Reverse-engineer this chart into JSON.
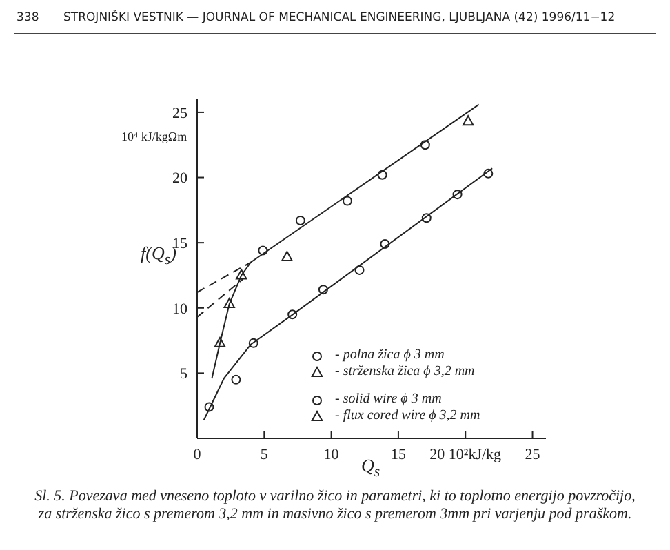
{
  "chart_data": {
    "type": "scatter",
    "xlabel": "Q$_{s}$",
    "ylabel": "f(Q$_{s}$)",
    "xlim": [
      0,
      26
    ],
    "ylim": [
      0,
      26
    ],
    "xticks": [
      0,
      5,
      10,
      15,
      {
        "value": 20,
        "label": "20 10²kJ/kg"
      },
      25
    ],
    "yticks": [
      5,
      10,
      15,
      20,
      25
    ],
    "grid": false,
    "legend": "bottom right",
    "series": [
      {
        "name": "- polna žica ϕ 3 mm",
        "marker": "circle",
        "color": "#222222",
        "x": [
          0.9,
          2.9,
          4.2,
          7.1,
          9.4,
          12.1,
          14.0,
          17.1,
          19.4,
          21.7,
          4.9,
          7.7,
          11.2,
          13.8,
          17.0
        ],
        "values": [
          2.4,
          4.5,
          7.3,
          9.5,
          11.4,
          12.9,
          14.9,
          16.9,
          18.7,
          20.3,
          14.4,
          16.7,
          18.2,
          20.2,
          22.5
        ]
      },
      {
        "name": "- strženska žica ϕ 3,2 mm",
        "marker": "triangle",
        "color": "#222222",
        "x": [
          1.7,
          2.4,
          3.3,
          6.7,
          20.2
        ],
        "values": [
          7.3,
          10.3,
          12.5,
          13.9,
          24.3
        ]
      },
      {
        "type": "line",
        "line_style": "solid",
        "color": "#222222",
        "x": [
          0.5,
          2,
          4,
          7,
          22
        ],
        "values": [
          1.4,
          4.6,
          7.2,
          9.4,
          20.7
        ]
      },
      {
        "type": "line",
        "line_style": "solid",
        "color": "#222222",
        "x": [
          1.1,
          1.7,
          2.4,
          3.3,
          4,
          21
        ],
        "values": [
          4.6,
          7.3,
          10.3,
          12.5,
          13.5,
          25.6
        ]
      },
      {
        "type": "line",
        "line_style": "dashed",
        "color": "#222222",
        "x": [
          0,
          4
        ],
        "values": [
          11.2,
          13.5
        ]
      },
      {
        "type": "line",
        "line_style": "dashed",
        "color": "#222222",
        "x": [
          0,
          3.4
        ],
        "values": [
          9.3,
          12.2
        ]
      }
    ],
    "annotations": [
      "338",
      "STROJNIŠKI VESTNIK — JOURNAL OF MECHANICAL ENGINEERING, LJUBLJANA (42) 1996/11−12",
      "10⁴ kJ/kgΩm",
      "- solid wire ϕ 3 mm",
      "- flux cored wire ϕ 3,2 mm",
      "Sl. 5. Povezava med vneseno toploto v varilno žico in parametri, ki to toplotno energijo povzročijo, za strženska žico s premerom 3,2 mm in masivno žico s premerom  3mm  pri varjenju pod praškom."
    ]
  }
}
